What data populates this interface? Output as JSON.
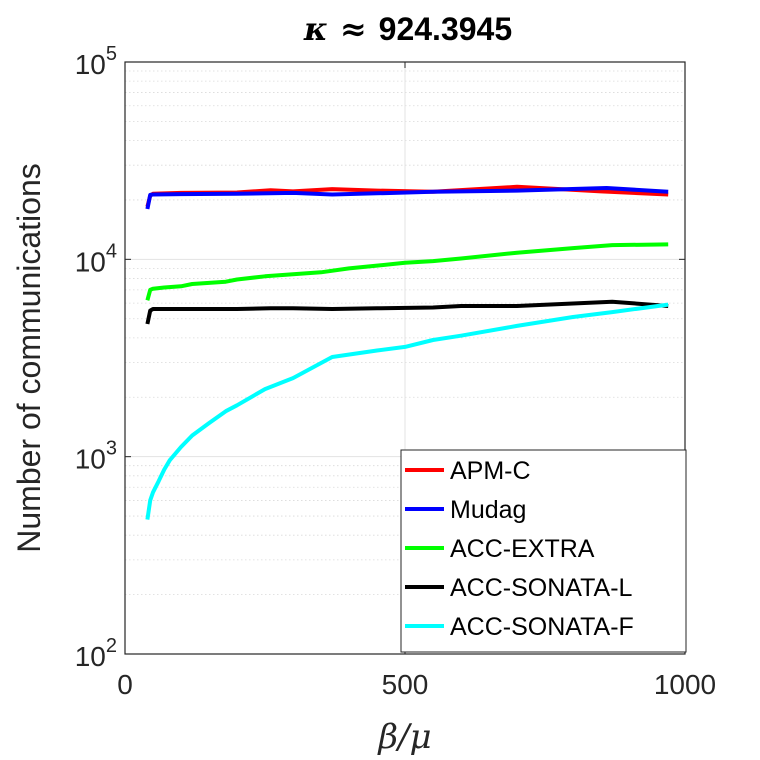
{
  "chart_data": {
    "type": "line",
    "title_symbol": "κ",
    "title_relation": "≈",
    "title_value": "924.3945",
    "xlabel": "β/μ",
    "ylabel": "Number of communications",
    "xlim": [
      0,
      1000
    ],
    "ylim": [
      100,
      100000
    ],
    "yscale": "log",
    "xticks": [
      0,
      500,
      1000
    ],
    "xtick_labels": [
      "0",
      "500",
      "1000"
    ],
    "yticks": [
      100,
      1000,
      10000,
      100000
    ],
    "ytick_labels": [
      {
        "base": "10",
        "exp": "2"
      },
      {
        "base": "10",
        "exp": "3"
      },
      {
        "base": "10",
        "exp": "4"
      },
      {
        "base": "10",
        "exp": "5"
      }
    ],
    "grid": true,
    "legend_position": "bottom-right",
    "series": [
      {
        "name": "APM-C",
        "color": "#ff0000",
        "x": [
          40,
          45,
          50,
          100,
          200,
          260,
          300,
          370,
          450,
          550,
          700,
          850,
          970
        ],
        "y": [
          18500,
          21000,
          21500,
          21700,
          21800,
          22400,
          22100,
          22700,
          22300,
          22000,
          23300,
          22100,
          21300
        ]
      },
      {
        "name": "Mudag",
        "color": "#0000ff",
        "x": [
          40,
          45,
          50,
          100,
          200,
          300,
          370,
          450,
          550,
          700,
          860,
          970
        ],
        "y": [
          18000,
          21200,
          21300,
          21400,
          21500,
          21700,
          21300,
          21600,
          22000,
          22300,
          23000,
          22000
        ]
      },
      {
        "name": "ACC-EXTRA",
        "color": "#00ff00",
        "x": [
          40,
          45,
          50,
          70,
          100,
          120,
          150,
          180,
          200,
          250,
          300,
          350,
          400,
          450,
          500,
          550,
          600,
          700,
          800,
          870,
          970
        ],
        "y": [
          6200,
          7000,
          7100,
          7200,
          7300,
          7500,
          7600,
          7700,
          7900,
          8200,
          8400,
          8600,
          9000,
          9300,
          9600,
          9800,
          10100,
          10800,
          11400,
          11800,
          11900
        ]
      },
      {
        "name": "ACC-SONATA-L",
        "color": "#000000",
        "x": [
          40,
          45,
          50,
          100,
          150,
          200,
          260,
          300,
          370,
          450,
          550,
          600,
          700,
          870,
          970
        ],
        "y": [
          4700,
          5500,
          5600,
          5600,
          5600,
          5600,
          5650,
          5650,
          5600,
          5650,
          5700,
          5800,
          5800,
          6100,
          5800
        ]
      },
      {
        "name": "ACC-SONATA-F",
        "color": "#00ffff",
        "x": [
          40,
          45,
          50,
          60,
          70,
          80,
          100,
          120,
          150,
          180,
          200,
          250,
          300,
          370,
          450,
          500,
          550,
          600,
          700,
          800,
          870,
          970
        ],
        "y": [
          480,
          600,
          660,
          750,
          860,
          960,
          1120,
          1280,
          1480,
          1700,
          1820,
          2200,
          2500,
          3200,
          3450,
          3600,
          3900,
          4100,
          4600,
          5100,
          5400,
          5900
        ]
      }
    ]
  }
}
